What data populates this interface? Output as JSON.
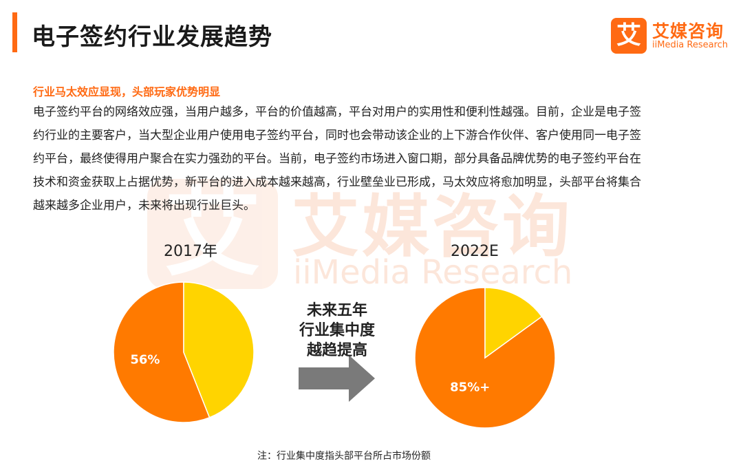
{
  "header": {
    "title": "电子签约行业发展趋势"
  },
  "logo": {
    "mark": "艾",
    "name_cn": "艾媒咨询",
    "name_en": "iiMedia Research"
  },
  "watermark": {
    "mark": "艾",
    "name_cn": "艾媒咨询",
    "name_en": "iiMedia Research"
  },
  "content": {
    "subtitle": "行业马太效应显现，头部玩家优势明显",
    "lines": [
      "电子签约平台的网络效应强，当用户越多，平台的价值越高，平台对用户的实用性和便利性越强。目前，企业是电子签",
      "约行业的主要客户，当大型企业用户使用电子签约平台，同时也会带动该企业的上下游合作伙伴、客户使用同一电子签",
      "约平台，最终使得用户聚合在实力强劲的平台。当前，电子签约市场进入窗口期，部分具备品牌优势的电子签约平台在",
      "技术和资金获取上占据优势，新平台的进入成本越来越高，行业壁垒业已形成，马太效应将愈加明显，头部平台将集合",
      "越来越多企业用户，未来将出现行业巨头。"
    ]
  },
  "colors": {
    "orange": "#ff7a00",
    "yellow": "#ffd400",
    "arrow": "#7a7a7a"
  },
  "chart_data": [
    {
      "type": "pie",
      "title": "2017年",
      "values": [
        56,
        44
      ],
      "labels": [
        "56%",
        ""
      ],
      "colors": [
        "#ff7a00",
        "#ffd400"
      ]
    },
    {
      "type": "pie",
      "title": "2022E",
      "values": [
        85,
        15
      ],
      "labels": [
        "85%+",
        ""
      ],
      "colors": [
        "#ff7a00",
        "#ffd400"
      ]
    }
  ],
  "arrow": {
    "lines": [
      "未来五年",
      "行业集中度",
      "越趋提高"
    ]
  },
  "note": "注：行业集中度指头部平台所占市场份额"
}
